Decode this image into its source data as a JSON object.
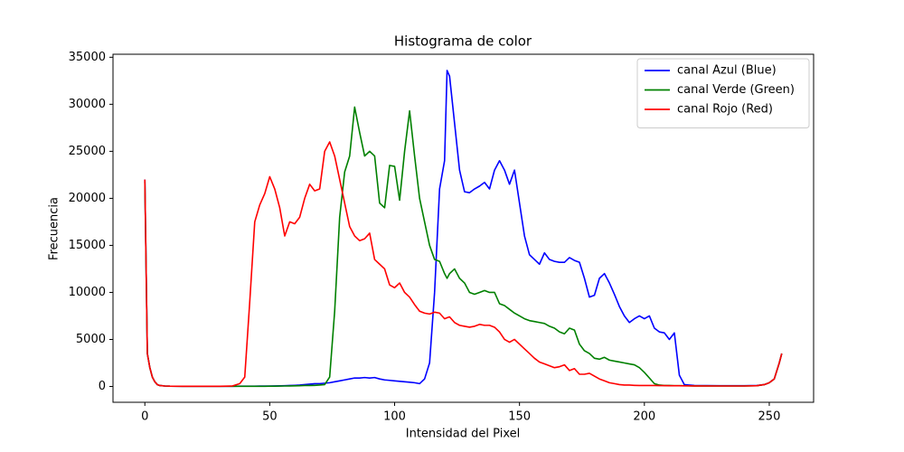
{
  "chart_data": {
    "type": "line",
    "title": "Histograma de color",
    "x_label": "Intensidad del Pixel",
    "y_label": "Frecuencia",
    "legend": "upper right",
    "xlim": [
      -12.75,
      267.75
    ],
    "ylim": [
      -1680,
      35320
    ],
    "xticks": [
      0,
      50,
      100,
      150,
      200,
      250
    ],
    "yticks": [
      0,
      5000,
      10000,
      15000,
      20000,
      25000,
      30000,
      35000
    ],
    "x": [
      0,
      1,
      2,
      3,
      4,
      5,
      6,
      8,
      10,
      15,
      20,
      25,
      30,
      35,
      38,
      40,
      42,
      44,
      46,
      48,
      50,
      52,
      54,
      56,
      58,
      60,
      62,
      64,
      66,
      68,
      70,
      72,
      74,
      76,
      78,
      80,
      82,
      84,
      86,
      88,
      90,
      92,
      94,
      96,
      98,
      100,
      102,
      104,
      106,
      108,
      110,
      112,
      114,
      116,
      118,
      120,
      121,
      122,
      124,
      126,
      128,
      130,
      132,
      134,
      136,
      138,
      140,
      142,
      144,
      146,
      148,
      150,
      152,
      154,
      156,
      158,
      160,
      162,
      164,
      166,
      168,
      170,
      172,
      174,
      176,
      178,
      180,
      182,
      184,
      186,
      188,
      190,
      192,
      194,
      196,
      198,
      200,
      202,
      204,
      206,
      208,
      210,
      212,
      214,
      216,
      220,
      230,
      240,
      245,
      248,
      250,
      252,
      254,
      255
    ],
    "series": [
      {
        "name": "canal Azul (Blue)",
        "color": "#0000ff",
        "values": [
          22000,
          3500,
          2000,
          1000,
          500,
          200,
          100,
          50,
          30,
          20,
          20,
          20,
          20,
          20,
          30,
          30,
          30,
          30,
          40,
          40,
          50,
          60,
          70,
          80,
          100,
          120,
          150,
          200,
          250,
          300,
          300,
          350,
          400,
          500,
          600,
          700,
          800,
          900,
          900,
          950,
          900,
          950,
          800,
          700,
          650,
          600,
          550,
          500,
          450,
          400,
          300,
          800,
          2500,
          10000,
          21000,
          24000,
          33600,
          33000,
          28000,
          23000,
          20700,
          20600,
          21000,
          21300,
          21700,
          21000,
          23000,
          24000,
          23000,
          21500,
          23000,
          19500,
          16000,
          14000,
          13500,
          13000,
          14200,
          13500,
          13300,
          13200,
          13200,
          13700,
          13400,
          13200,
          11500,
          9500,
          9700,
          11500,
          12000,
          11000,
          9800,
          8500,
          7500,
          6800,
          7200,
          7500,
          7200,
          7500,
          6200,
          5800,
          5700,
          5000,
          5700,
          1200,
          200,
          100,
          80,
          80,
          100,
          200,
          400,
          800,
          2500,
          3500
        ]
      },
      {
        "name": "canal Verde (Green)",
        "color": "#008000",
        "values": [
          21800,
          3500,
          2000,
          1000,
          500,
          200,
          100,
          50,
          30,
          20,
          20,
          20,
          20,
          20,
          20,
          20,
          20,
          20,
          20,
          20,
          30,
          30,
          40,
          50,
          60,
          70,
          80,
          100,
          100,
          120,
          150,
          200,
          1000,
          8000,
          18000,
          22800,
          24500,
          29700,
          27000,
          24500,
          25000,
          24500,
          19500,
          19000,
          23500,
          23400,
          19800,
          25000,
          29300,
          24500,
          20000,
          17500,
          15000,
          13500,
          13300,
          12000,
          11500,
          12000,
          12500,
          11500,
          11000,
          10000,
          9800,
          10000,
          10200,
          10000,
          10000,
          8800,
          8600,
          8200,
          7800,
          7500,
          7200,
          7000,
          6900,
          6800,
          6700,
          6400,
          6200,
          5800,
          5600,
          6200,
          6000,
          4500,
          3800,
          3500,
          3000,
          2900,
          3100,
          2800,
          2700,
          2600,
          2500,
          2400,
          2300,
          2000,
          1500,
          900,
          300,
          150,
          100,
          100,
          80,
          80,
          80,
          60,
          50,
          50,
          80,
          200,
          400,
          800,
          2500,
          3500
        ]
      },
      {
        "name": "canal Rojo (Red)",
        "color": "#ff0000",
        "values": [
          22000,
          3500,
          2000,
          1000,
          500,
          200,
          100,
          50,
          30,
          20,
          20,
          20,
          20,
          50,
          300,
          1000,
          9000,
          17500,
          19300,
          20500,
          22300,
          21000,
          19000,
          16000,
          17500,
          17300,
          18000,
          20000,
          21500,
          20800,
          21000,
          25000,
          26000,
          24500,
          22000,
          19500,
          17000,
          16000,
          15500,
          15700,
          16300,
          13500,
          13000,
          12500,
          10800,
          10500,
          11000,
          10000,
          9500,
          8700,
          8000,
          7800,
          7700,
          7900,
          7800,
          7200,
          7300,
          7400,
          6800,
          6500,
          6400,
          6300,
          6400,
          6600,
          6500,
          6500,
          6300,
          5800,
          5000,
          4700,
          5000,
          4500,
          4000,
          3500,
          3000,
          2600,
          2400,
          2200,
          2000,
          2100,
          2300,
          1700,
          1900,
          1300,
          1300,
          1400,
          1100,
          800,
          600,
          400,
          300,
          200,
          150,
          150,
          120,
          100,
          100,
          100,
          100,
          90,
          90,
          80,
          80,
          80,
          70,
          60,
          50,
          50,
          80,
          200,
          400,
          800,
          2500,
          3500
        ]
      }
    ]
  }
}
